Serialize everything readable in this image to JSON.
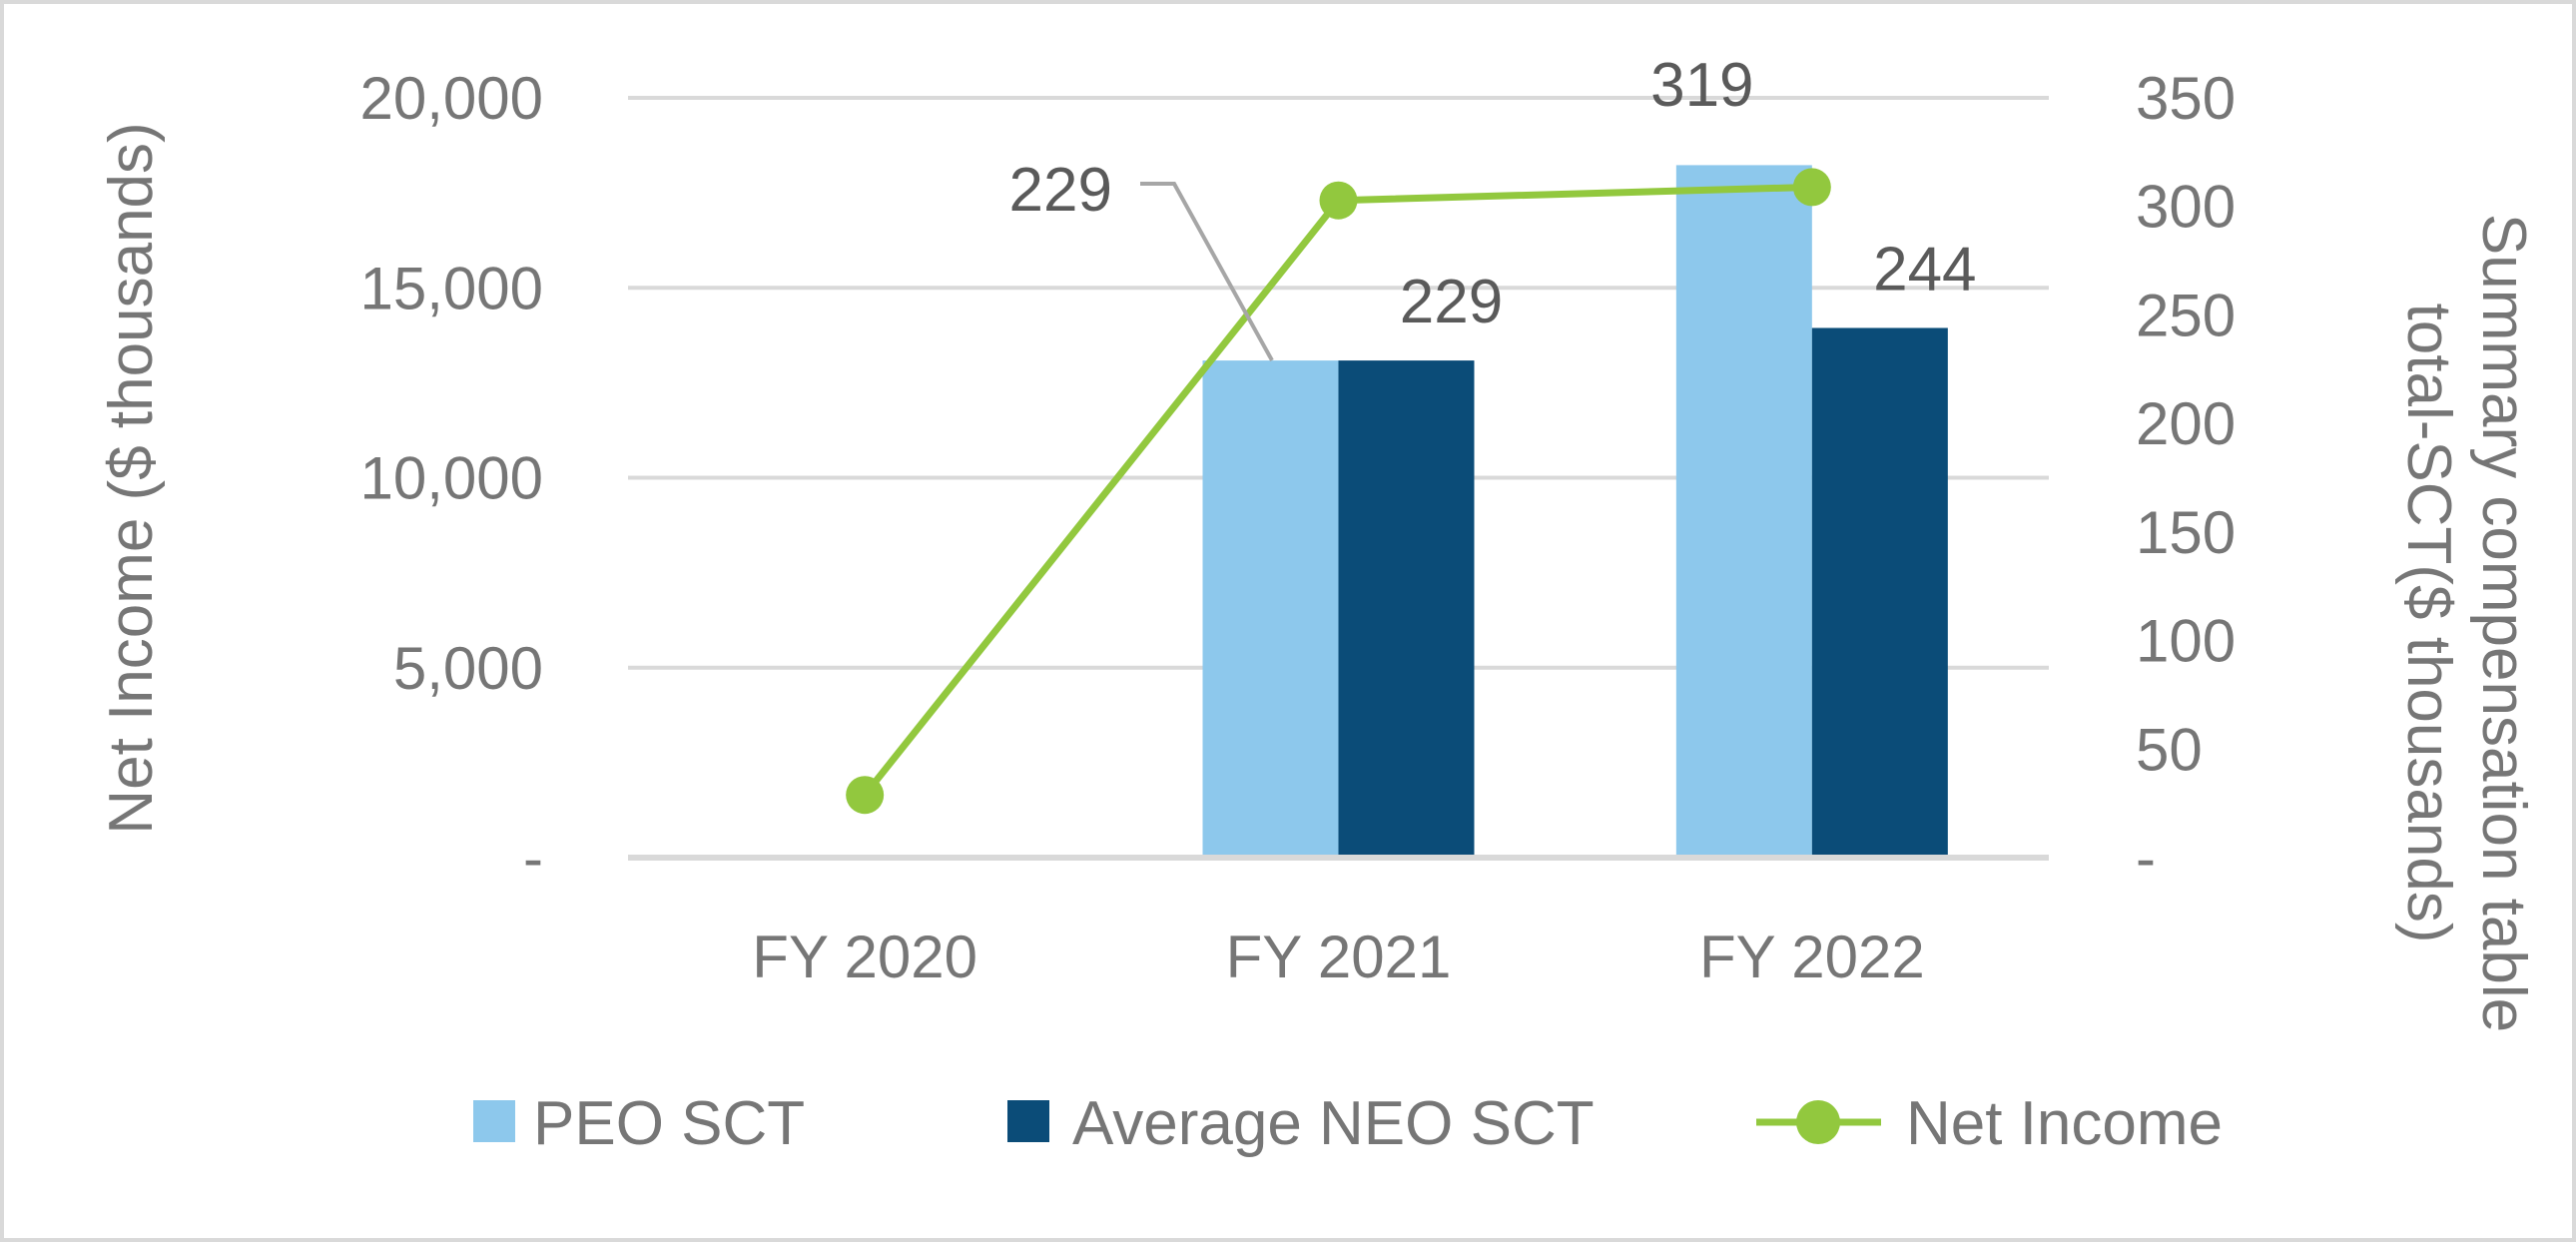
{
  "chart_data": {
    "type": "bar",
    "categories": [
      "FY 2020",
      "FY 2021",
      "FY 2022"
    ],
    "series": [
      {
        "name": "PEO SCT",
        "kind": "bar",
        "axis": "right",
        "color": "#8dc8ec",
        "values": [
          null,
          229,
          319
        ],
        "labels": [
          "",
          "229",
          "319"
        ]
      },
      {
        "name": "Average  NEO SCT",
        "kind": "bar",
        "axis": "right",
        "color": "#0b4c78",
        "values": [
          null,
          229,
          244
        ],
        "labels": [
          "",
          "229",
          "244"
        ]
      },
      {
        "name": "Net Income",
        "kind": "line",
        "axis": "left",
        "color": "#92c83e",
        "values": [
          1650,
          17300,
          17650
        ]
      }
    ],
    "left_axis": {
      "title": "Net Income ($ thousands)",
      "range": [
        0,
        20000
      ],
      "ticks": [
        0,
        5000,
        10000,
        15000,
        20000
      ],
      "tick_labels": [
        "-",
        "5,000",
        "10,000",
        "15,000",
        "20,000"
      ]
    },
    "right_axis": {
      "title_lines": [
        "Summary compensation table",
        "total-SCT($ thousands)"
      ],
      "range": [
        0,
        350
      ],
      "ticks": [
        0,
        50,
        100,
        150,
        200,
        250,
        300,
        350
      ],
      "tick_labels": [
        "-",
        "50",
        "100",
        "150",
        "200",
        "250",
        "300",
        "350"
      ]
    },
    "grid": true,
    "legend": {
      "position": "bottom",
      "entries": [
        "PEO SCT",
        "Average  NEO SCT",
        "Net Income"
      ]
    }
  }
}
